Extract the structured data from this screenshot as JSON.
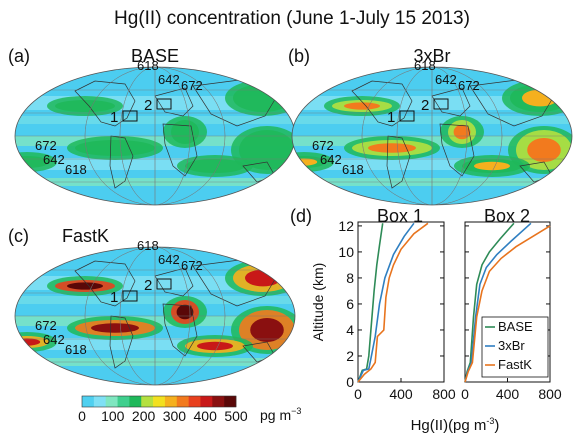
{
  "figure": {
    "title": "Hg(II) concentration (June 1-July 15 2013)"
  },
  "maps": [
    {
      "panel": "(a)",
      "name": "BASE",
      "intensity": 0.0
    },
    {
      "panel": "(b)",
      "name": "3xBr",
      "intensity": 0.6
    },
    {
      "panel": "(c)",
      "name": "FastK",
      "intensity": 1.0
    }
  ],
  "map_annotations": {
    "box_labels": [
      "1",
      "2"
    ],
    "contour_labels": [
      "618",
      "642",
      "672"
    ]
  },
  "colorbar": {
    "ticks": [
      "0",
      "100",
      "200",
      "300",
      "400",
      "500"
    ],
    "unit_main": "pg m",
    "unit_exp": "−3",
    "colors": [
      "#4fd0f0",
      "#7fe0f5",
      "#7fe6c0",
      "#3fcf8e",
      "#1fb85a",
      "#b4e040",
      "#f2e020",
      "#f5b01e",
      "#f27a1e",
      "#e8401e",
      "#c81818",
      "#8a1010",
      "#5a0808"
    ]
  },
  "profiles": {
    "panel": "(d)",
    "ylabel": "Altitude (km)",
    "xlabel_main": "Hg(II)(pg m",
    "xlabel_exp": "-3",
    "xlabel_close": ")",
    "y_ticks": [
      "0",
      "2",
      "4",
      "6",
      "8",
      "10",
      "12"
    ],
    "x_ticks": [
      "0",
      "400",
      "800"
    ],
    "legend": [
      "BASE",
      "3xBr",
      "FastK"
    ],
    "colors": {
      "BASE": "#2e8b57",
      "3xBr": "#2f7fc1",
      "FastK": "#e8741e"
    }
  },
  "chart_data": {
    "type": "line",
    "title": "Hg(II) concentration (June 1-July 15 2013)",
    "xlabel": "Hg(II)(pg m-3)",
    "ylabel": "Altitude (km)",
    "xlim": [
      0,
      800
    ],
    "ylim": [
      0,
      12.3
    ],
    "panels": [
      {
        "name": "Box 1",
        "series": [
          {
            "name": "BASE",
            "x": [
              0,
              40,
              80,
              100,
              120,
              150,
              175,
              200,
              230
            ],
            "y": [
              0,
              0.9,
              1.0,
              2.0,
              4.0,
              7.0,
              9.0,
              10.5,
              12.2
            ]
          },
          {
            "name": "3xBr",
            "x": [
              0,
              50,
              100,
              120,
              160,
              200,
              250,
              330,
              430,
              520
            ],
            "y": [
              0,
              0.9,
              1.0,
              1.8,
              3.5,
              6.0,
              8.0,
              9.8,
              11.2,
              12.2
            ]
          },
          {
            "name": "FastK",
            "x": [
              0,
              60,
              120,
              160,
              180,
              240,
              260,
              290,
              330,
              400,
              520,
              650
            ],
            "y": [
              0,
              0.6,
              1.0,
              1.5,
              3.5,
              4.0,
              6.5,
              8.0,
              9.0,
              10.2,
              11.4,
              12.2
            ]
          }
        ]
      },
      {
        "name": "Box 2",
        "series": [
          {
            "name": "BASE",
            "x": [
              0,
              20,
              50,
              80,
              110,
              160,
              230,
              330,
              460
            ],
            "y": [
              0,
              0.8,
              1.5,
              5.0,
              7.5,
              9.0,
              10.0,
              11.0,
              12.2
            ]
          },
          {
            "name": "3xBr",
            "x": [
              0,
              25,
              60,
              100,
              140,
              200,
              300,
              430,
              620
            ],
            "y": [
              0,
              0.8,
              1.5,
              5.0,
              7.5,
              8.8,
              9.8,
              10.8,
              12.2
            ]
          },
          {
            "name": "FastK",
            "x": [
              0,
              30,
              70,
              110,
              160,
              230,
              340,
              480,
              640,
              800
            ],
            "y": [
              0,
              0.8,
              1.5,
              5.0,
              7.0,
              8.5,
              9.5,
              10.4,
              11.2,
              12.0
            ]
          }
        ]
      }
    ]
  }
}
